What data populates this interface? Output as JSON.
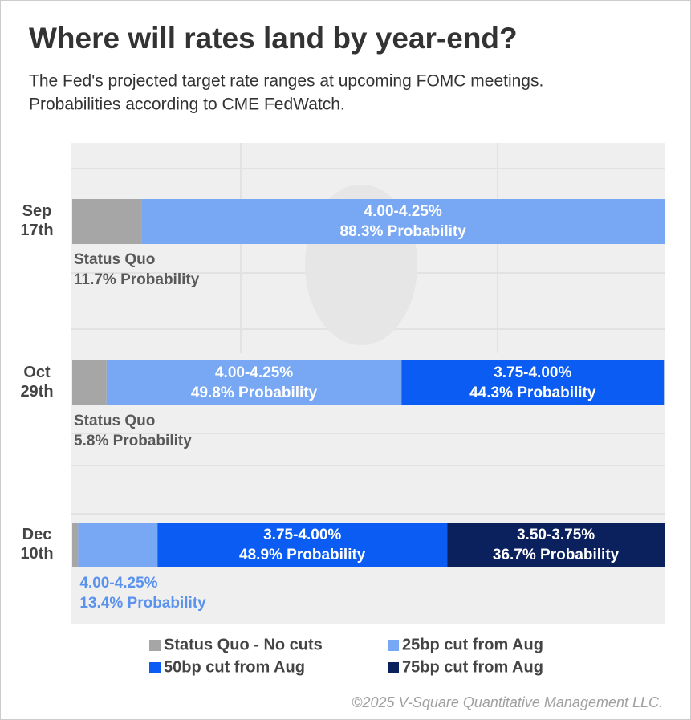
{
  "chart_data": {
    "type": "stacked-bar-horizontal",
    "title": "Where will rates land by year-end?",
    "subtitle": [
      "The Fed's projected target rate ranges at upcoming FOMC meetings.",
      "Probabilities according to CME FedWatch."
    ],
    "categories": [
      "Sep 17th",
      "Oct 29th",
      "Dec 10th"
    ],
    "xlim": [
      0,
      100
    ],
    "series": [
      {
        "name": "Status Quo - No cuts",
        "segment_label": "Status Quo",
        "color": "#a6a6a6",
        "label_color": "#595959",
        "values": [
          11.7,
          5.8,
          1.0
        ],
        "value_labels": [
          "11.7% Probability",
          "5.8% Probability",
          null
        ]
      },
      {
        "name": "25bp cut from Aug",
        "segment_label": "4.00-4.25%",
        "color": "#78a8f4",
        "label_color": "#5a92ee",
        "values": [
          88.3,
          49.8,
          13.4
        ],
        "value_labels": [
          "88.3% Probability",
          "49.8% Probability",
          "13.4% Probability"
        ]
      },
      {
        "name": "50bp cut from Aug",
        "segment_label": "3.75-4.00%",
        "color": "#0b5cf2",
        "label_color": "#0b5cf2",
        "values": [
          null,
          44.3,
          48.9
        ],
        "value_labels": [
          null,
          "44.3% Probability",
          "48.9% Probability"
        ]
      },
      {
        "name": "75bp cut from Aug",
        "segment_label": "3.50-3.75%",
        "color": "#0a215e",
        "label_color": "#0a215e",
        "values": [
          null,
          null,
          36.7
        ],
        "value_labels": [
          null,
          null,
          "36.7% Probability"
        ]
      }
    ],
    "legend": "bottom",
    "footer": "©2025 V-Square Quantitative Management LLC."
  }
}
